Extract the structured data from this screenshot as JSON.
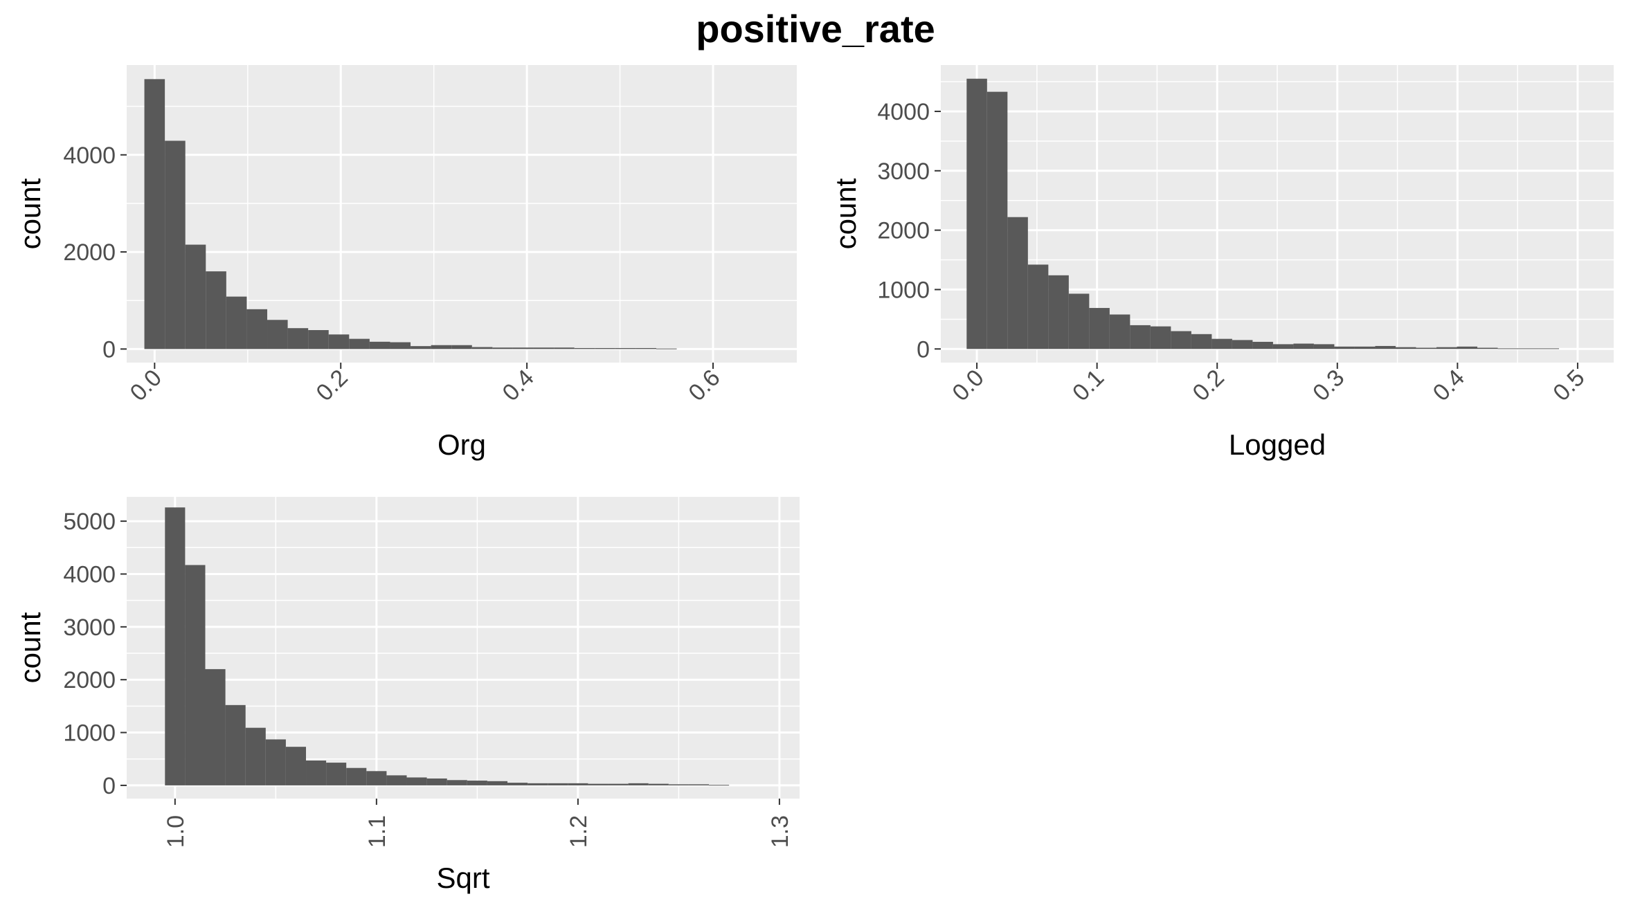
{
  "title": "positive_rate",
  "colors": {
    "panel_background": "#ebebeb",
    "grid_major": "#ffffff",
    "bar_fill": "#595959",
    "tick_text": "#4d4d4d",
    "tick_mark": "#333333"
  },
  "chart_data": [
    {
      "type": "bar",
      "xlabel": "Org",
      "ylabel": "count",
      "xlim": [
        -0.03,
        0.69
      ],
      "ylim": [
        -280,
        5850
      ],
      "x_ticks": [
        0.0,
        0.2,
        0.4,
        0.6
      ],
      "x_tick_labels": [
        "0.0",
        "0.2",
        "0.4",
        "0.6"
      ],
      "y_ticks": [
        0,
        2000,
        4000
      ],
      "y_tick_labels": [
        "0",
        "2000",
        "4000"
      ],
      "grid": true,
      "bins": [
        {
          "x0": -0.011,
          "x1": 0.011,
          "count": 5560
        },
        {
          "x0": 0.011,
          "x1": 0.033,
          "count": 4290
        },
        {
          "x0": 0.033,
          "x1": 0.055,
          "count": 2150
        },
        {
          "x0": 0.055,
          "x1": 0.077,
          "count": 1600
        },
        {
          "x0": 0.077,
          "x1": 0.099,
          "count": 1080
        },
        {
          "x0": 0.099,
          "x1": 0.121,
          "count": 820
        },
        {
          "x0": 0.121,
          "x1": 0.143,
          "count": 600
        },
        {
          "x0": 0.143,
          "x1": 0.165,
          "count": 430
        },
        {
          "x0": 0.165,
          "x1": 0.187,
          "count": 390
        },
        {
          "x0": 0.187,
          "x1": 0.209,
          "count": 300
        },
        {
          "x0": 0.209,
          "x1": 0.231,
          "count": 210
        },
        {
          "x0": 0.231,
          "x1": 0.253,
          "count": 150
        },
        {
          "x0": 0.253,
          "x1": 0.275,
          "count": 140
        },
        {
          "x0": 0.275,
          "x1": 0.297,
          "count": 60
        },
        {
          "x0": 0.297,
          "x1": 0.319,
          "count": 80
        },
        {
          "x0": 0.319,
          "x1": 0.341,
          "count": 80
        },
        {
          "x0": 0.341,
          "x1": 0.363,
          "count": 40
        },
        {
          "x0": 0.363,
          "x1": 0.385,
          "count": 30
        },
        {
          "x0": 0.385,
          "x1": 0.407,
          "count": 30
        },
        {
          "x0": 0.407,
          "x1": 0.429,
          "count": 30
        },
        {
          "x0": 0.429,
          "x1": 0.451,
          "count": 30
        },
        {
          "x0": 0.451,
          "x1": 0.473,
          "count": 20
        },
        {
          "x0": 0.473,
          "x1": 0.495,
          "count": 20
        },
        {
          "x0": 0.495,
          "x1": 0.517,
          "count": 20
        },
        {
          "x0": 0.517,
          "x1": 0.539,
          "count": 20
        },
        {
          "x0": 0.539,
          "x1": 0.561,
          "count": 10
        }
      ]
    },
    {
      "type": "bar",
      "xlabel": "Logged",
      "ylabel": "count",
      "xlim": [
        -0.03,
        0.53
      ],
      "ylim": [
        -230,
        4780
      ],
      "x_ticks": [
        0.0,
        0.1,
        0.2,
        0.3,
        0.4,
        0.5
      ],
      "x_tick_labels": [
        "0.0",
        "0.1",
        "0.2",
        "0.3",
        "0.4",
        "0.5"
      ],
      "y_ticks": [
        0,
        1000,
        2000,
        3000,
        4000
      ],
      "y_tick_labels": [
        "0",
        "1000",
        "2000",
        "3000",
        "4000"
      ],
      "grid": true,
      "bins": [
        {
          "x0": -0.0085,
          "x1": 0.0085,
          "count": 4550
        },
        {
          "x0": 0.0085,
          "x1": 0.0255,
          "count": 4330
        },
        {
          "x0": 0.0255,
          "x1": 0.0425,
          "count": 2220
        },
        {
          "x0": 0.0425,
          "x1": 0.0595,
          "count": 1420
        },
        {
          "x0": 0.0595,
          "x1": 0.0765,
          "count": 1240
        },
        {
          "x0": 0.0765,
          "x1": 0.0935,
          "count": 930
        },
        {
          "x0": 0.0935,
          "x1": 0.1105,
          "count": 690
        },
        {
          "x0": 0.1105,
          "x1": 0.1275,
          "count": 580
        },
        {
          "x0": 0.1275,
          "x1": 0.1445,
          "count": 400
        },
        {
          "x0": 0.1445,
          "x1": 0.1615,
          "count": 380
        },
        {
          "x0": 0.1615,
          "x1": 0.1785,
          "count": 300
        },
        {
          "x0": 0.1785,
          "x1": 0.1955,
          "count": 250
        },
        {
          "x0": 0.1955,
          "x1": 0.2125,
          "count": 170
        },
        {
          "x0": 0.2125,
          "x1": 0.2295,
          "count": 150
        },
        {
          "x0": 0.2295,
          "x1": 0.2465,
          "count": 120
        },
        {
          "x0": 0.2465,
          "x1": 0.2635,
          "count": 80
        },
        {
          "x0": 0.2635,
          "x1": 0.2805,
          "count": 90
        },
        {
          "x0": 0.2805,
          "x1": 0.2975,
          "count": 80
        },
        {
          "x0": 0.2975,
          "x1": 0.3145,
          "count": 40
        },
        {
          "x0": 0.3145,
          "x1": 0.3315,
          "count": 40
        },
        {
          "x0": 0.3315,
          "x1": 0.3485,
          "count": 50
        },
        {
          "x0": 0.3485,
          "x1": 0.3655,
          "count": 30
        },
        {
          "x0": 0.3655,
          "x1": 0.3825,
          "count": 20
        },
        {
          "x0": 0.3825,
          "x1": 0.3995,
          "count": 30
        },
        {
          "x0": 0.3995,
          "x1": 0.4165,
          "count": 40
        },
        {
          "x0": 0.4165,
          "x1": 0.4335,
          "count": 20
        },
        {
          "x0": 0.4335,
          "x1": 0.4505,
          "count": 10
        },
        {
          "x0": 0.4505,
          "x1": 0.4675,
          "count": 10
        },
        {
          "x0": 0.4675,
          "x1": 0.4845,
          "count": 10
        }
      ]
    },
    {
      "type": "bar",
      "xlabel": "Sqrt",
      "ylabel": "count",
      "xlim": [
        0.976,
        1.31
      ],
      "ylim": [
        -250,
        5460
      ],
      "x_ticks": [
        1.0,
        1.1,
        1.2,
        1.3
      ],
      "x_tick_labels": [
        "1.0",
        "1.1",
        "1.2",
        "1.3"
      ],
      "y_ticks": [
        0,
        1000,
        2000,
        3000,
        4000,
        5000
      ],
      "y_tick_labels": [
        "0",
        "1000",
        "2000",
        "3000",
        "4000",
        "5000"
      ],
      "grid": true,
      "bins": [
        {
          "x0": 0.995,
          "x1": 1.005,
          "count": 5260
        },
        {
          "x0": 1.005,
          "x1": 1.015,
          "count": 4170
        },
        {
          "x0": 1.015,
          "x1": 1.025,
          "count": 2200
        },
        {
          "x0": 1.025,
          "x1": 1.035,
          "count": 1520
        },
        {
          "x0": 1.035,
          "x1": 1.045,
          "count": 1090
        },
        {
          "x0": 1.045,
          "x1": 1.055,
          "count": 870
        },
        {
          "x0": 1.055,
          "x1": 1.065,
          "count": 730
        },
        {
          "x0": 1.065,
          "x1": 1.075,
          "count": 470
        },
        {
          "x0": 1.075,
          "x1": 1.085,
          "count": 430
        },
        {
          "x0": 1.085,
          "x1": 1.095,
          "count": 330
        },
        {
          "x0": 1.095,
          "x1": 1.105,
          "count": 270
        },
        {
          "x0": 1.105,
          "x1": 1.115,
          "count": 190
        },
        {
          "x0": 1.115,
          "x1": 1.125,
          "count": 150
        },
        {
          "x0": 1.125,
          "x1": 1.135,
          "count": 130
        },
        {
          "x0": 1.135,
          "x1": 1.145,
          "count": 100
        },
        {
          "x0": 1.145,
          "x1": 1.155,
          "count": 90
        },
        {
          "x0": 1.155,
          "x1": 1.165,
          "count": 80
        },
        {
          "x0": 1.165,
          "x1": 1.175,
          "count": 50
        },
        {
          "x0": 1.175,
          "x1": 1.185,
          "count": 40
        },
        {
          "x0": 1.185,
          "x1": 1.195,
          "count": 40
        },
        {
          "x0": 1.195,
          "x1": 1.205,
          "count": 40
        },
        {
          "x0": 1.205,
          "x1": 1.215,
          "count": 30
        },
        {
          "x0": 1.215,
          "x1": 1.225,
          "count": 30
        },
        {
          "x0": 1.225,
          "x1": 1.235,
          "count": 40
        },
        {
          "x0": 1.235,
          "x1": 1.245,
          "count": 30
        },
        {
          "x0": 1.245,
          "x1": 1.255,
          "count": 20
        },
        {
          "x0": 1.255,
          "x1": 1.265,
          "count": 20
        },
        {
          "x0": 1.265,
          "x1": 1.275,
          "count": 10
        }
      ]
    }
  ]
}
